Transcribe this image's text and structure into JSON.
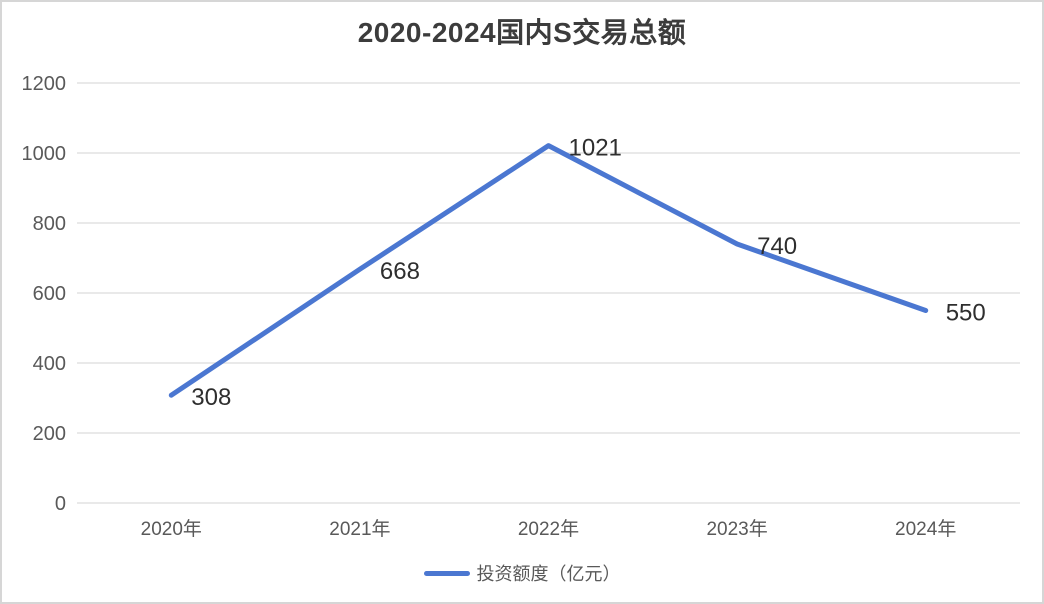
{
  "chart_data": {
    "type": "line",
    "title": "2020-2024国内S交易总额",
    "categories": [
      "2020年",
      "2021年",
      "2022年",
      "2023年",
      "2024年"
    ],
    "series": [
      {
        "name": "投资额度（亿元）",
        "values": [
          308,
          668,
          1021,
          740,
          550
        ],
        "color": "#4b77d1"
      }
    ],
    "xlabel": "",
    "ylabel": "",
    "ylim": [
      0,
      1200
    ],
    "ytick_interval": 200,
    "yticks": [
      0,
      200,
      400,
      600,
      800,
      1000,
      1200
    ],
    "grid": true,
    "data_labels": [
      308,
      668,
      1021,
      740,
      550
    ],
    "legend_position": "bottom"
  },
  "colors": {
    "line": "#4b77d1",
    "gridline": "#e2e2e2",
    "axis_text": "#595959",
    "data_label_text": "#2e2e2e",
    "title_text": "#3c3c3c",
    "page_border": "#d6d6d6",
    "background": "#ffffff"
  }
}
